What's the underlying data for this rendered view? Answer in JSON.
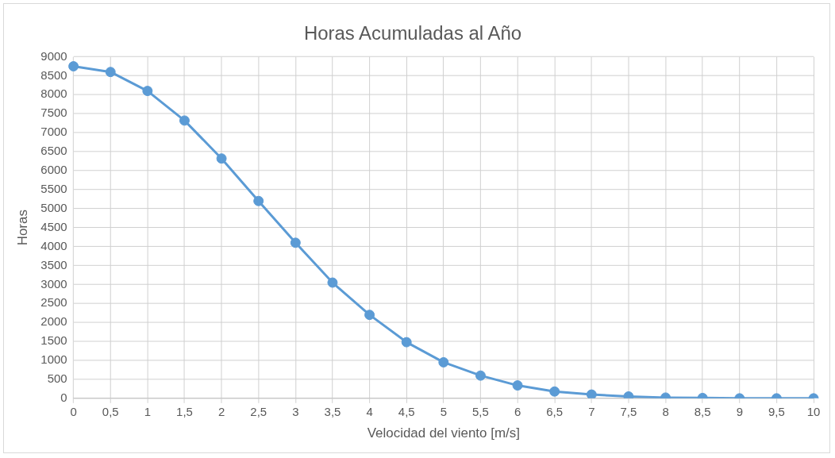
{
  "chart_data": {
    "type": "line",
    "title": "Horas Acumuladas al Año",
    "xlabel": "Velocidad del viento [m/s]",
    "ylabel": "Horas",
    "categories": [
      "0",
      "0,5",
      "1",
      "1,5",
      "2",
      "2,5",
      "3",
      "3,5",
      "4",
      "4,5",
      "5",
      "5,5",
      "6",
      "6,5",
      "7",
      "7,5",
      "8",
      "8,5",
      "9",
      "9,5",
      "10"
    ],
    "series": [
      {
        "color": "#5b9bd5",
        "values": [
          8750,
          8600,
          8100,
          7320,
          6320,
          5200,
          4100,
          3050,
          2200,
          1480,
          950,
          600,
          340,
          180,
          100,
          50,
          20,
          10,
          0,
          0,
          0
        ]
      }
    ],
    "ylim": [
      0,
      9000
    ],
    "yticks": [
      0,
      500,
      1000,
      1500,
      2000,
      2500,
      3000,
      3500,
      4000,
      4500,
      5000,
      5500,
      6000,
      6500,
      7000,
      7500,
      8000,
      8500,
      9000
    ],
    "grid": true,
    "legend": false,
    "marker": "circle",
    "line_style": "solid"
  }
}
